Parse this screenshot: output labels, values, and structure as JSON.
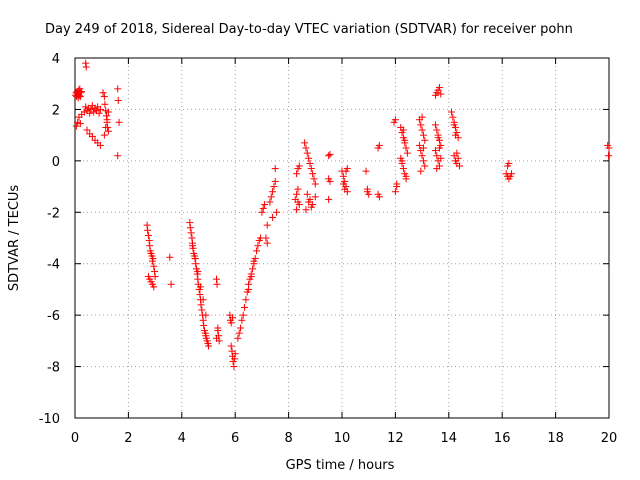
{
  "chart_data": {
    "type": "scatter",
    "title": "Day 249 of 2018, Sidereal Day-to-day VTEC variation (SDTVAR) for receiver pohn",
    "xlabel": "GPS time / hours",
    "ylabel": "SDTVAR / TECUs",
    "xlim": [
      0,
      20
    ],
    "ylim": [
      -10,
      4
    ],
    "xticks": [
      0,
      2,
      4,
      6,
      8,
      10,
      12,
      14,
      16,
      18,
      20
    ],
    "yticks": [
      -10,
      -8,
      -6,
      -4,
      -2,
      0,
      2,
      4
    ],
    "xtick_labels": [
      "0",
      "2",
      "4",
      "6",
      "8",
      "10",
      "12",
      "14",
      "16",
      "18",
      "20"
    ],
    "ytick_labels": [
      "-10",
      "-8",
      "-6",
      "-4",
      "-2",
      "0",
      "2",
      "4"
    ],
    "grid": true,
    "marker": "+",
    "color": "#ff0000",
    "series": [
      {
        "name": "SDTVAR",
        "x": [
          0.02,
          0.04,
          0.06,
          0.08,
          0.1,
          0.12,
          0.14,
          0.16,
          0.18,
          0.2,
          0.22,
          0.24,
          0.05,
          0.1,
          0.15,
          0.2,
          0.25,
          0.4,
          0.42,
          0.35,
          0.4,
          0.45,
          0.5,
          0.55,
          0.6,
          0.65,
          0.7,
          0.75,
          0.8,
          0.85,
          0.9,
          0.95,
          0.45,
          0.55,
          0.65,
          0.75,
          0.85,
          0.95,
          1.05,
          1.1,
          1.12,
          1.15,
          1.18,
          1.2,
          1.22,
          1.25,
          1.1,
          1.15,
          1.2,
          1.25,
          1.6,
          1.62,
          1.65,
          1.6,
          2.7,
          2.72,
          2.75,
          2.78,
          2.8,
          2.82,
          2.85,
          2.88,
          2.9,
          2.92,
          2.95,
          2.98,
          3.0,
          2.75,
          2.8,
          2.85,
          2.9,
          2.95,
          3.55,
          3.6,
          4.3,
          4.32,
          4.35,
          4.38,
          4.4,
          4.42,
          4.45,
          4.48,
          4.5,
          4.52,
          4.55,
          4.58,
          4.6,
          4.62,
          4.65,
          4.68,
          4.7,
          4.72,
          4.75,
          4.78,
          4.8,
          4.82,
          4.85,
          4.88,
          4.9,
          4.92,
          4.95,
          4.98,
          5.0,
          4.4,
          4.5,
          4.6,
          4.7,
          4.8,
          4.9,
          5.3,
          5.32,
          5.35,
          5.38,
          5.4,
          5.35,
          5.3,
          5.8,
          5.82,
          5.85,
          5.88,
          5.9,
          5.92,
          5.95,
          5.98,
          6.0,
          5.9,
          5.85,
          6.1,
          6.15,
          6.2,
          6.25,
          6.3,
          6.35,
          6.4,
          6.45,
          6.5,
          6.55,
          6.6,
          6.65,
          6.7,
          6.75,
          6.8,
          6.85,
          6.9,
          6.95,
          6.5,
          6.6,
          6.7,
          7.0,
          7.05,
          7.1,
          7.15,
          7.2,
          7.2,
          7.3,
          7.35,
          7.4,
          7.45,
          7.5,
          7.55,
          7.4,
          7.5,
          8.25,
          8.3,
          8.35,
          8.4,
          8.3,
          8.35,
          8.4,
          8.3,
          8.35,
          8.6,
          8.65,
          8.7,
          8.75,
          8.8,
          8.85,
          8.9,
          8.95,
          9.0,
          8.7,
          8.8,
          8.9,
          9.0,
          8.65,
          8.75,
          8.85,
          9.5,
          9.55,
          9.5,
          9.55,
          9.5,
          10.0,
          10.05,
          10.1,
          10.15,
          10.2,
          10.05,
          10.1,
          10.15,
          10.2,
          10.9,
          10.95,
          11.0,
          10.95,
          11.35,
          11.4,
          11.35,
          11.4,
          11.95,
          12.0,
          12.05,
          12.0,
          12.05,
          12.2,
          12.25,
          12.3,
          12.35,
          12.4,
          12.45,
          12.2,
          12.25,
          12.3,
          12.35,
          12.4,
          12.3,
          12.35,
          12.25,
          12.4,
          12.9,
          12.95,
          13.0,
          13.05,
          13.1,
          12.9,
          12.95,
          13.0,
          13.05,
          13.1,
          12.95,
          13.0,
          13.05,
          13.5,
          13.55,
          13.6,
          13.65,
          13.7,
          13.5,
          13.55,
          13.6,
          13.65,
          13.7,
          13.5,
          13.55,
          13.6,
          13.65,
          13.55,
          13.6,
          13.65,
          13.7,
          14.1,
          14.15,
          14.2,
          14.25,
          14.3,
          14.35,
          14.2,
          14.25,
          14.3,
          14.35,
          14.4,
          14.2,
          14.25,
          14.3,
          16.15,
          16.2,
          16.25,
          16.3,
          16.35,
          16.2,
          16.25,
          19.95,
          20.0,
          19.98
        ],
        "y": [
          2.55,
          2.65,
          2.5,
          2.7,
          2.6,
          2.45,
          2.75,
          2.55,
          2.8,
          2.5,
          2.65,
          2.7,
          1.35,
          1.5,
          1.7,
          1.45,
          1.8,
          3.8,
          3.65,
          1.9,
          2.1,
          1.95,
          2.05,
          1.85,
          2.0,
          2.15,
          1.9,
          2.05,
          1.95,
          2.1,
          1.85,
          2.0,
          1.2,
          1.05,
          0.95,
          0.8,
          0.7,
          0.6,
          2.65,
          2.5,
          2.2,
          1.95,
          1.75,
          1.5,
          1.3,
          1.15,
          1.0,
          1.3,
          1.6,
          1.9,
          2.8,
          2.35,
          1.5,
          0.2,
          -2.5,
          -2.7,
          -2.9,
          -3.1,
          -3.3,
          -3.5,
          -3.6,
          -3.7,
          -3.9,
          -3.8,
          -4.1,
          -4.3,
          -4.5,
          -4.5,
          -4.6,
          -4.7,
          -4.8,
          -4.9,
          -3.75,
          -4.8,
          -2.4,
          -2.6,
          -2.8,
          -3.0,
          -3.2,
          -3.4,
          -3.6,
          -3.7,
          -3.8,
          -4.0,
          -4.2,
          -4.4,
          -4.6,
          -4.8,
          -5.0,
          -5.2,
          -5.4,
          -5.6,
          -5.8,
          -6.0,
          -6.2,
          -6.4,
          -6.6,
          -6.7,
          -6.8,
          -6.9,
          -7.0,
          -7.1,
          -7.2,
          -3.3,
          -3.8,
          -4.3,
          -4.9,
          -5.4,
          -6.0,
          -4.6,
          -4.8,
          -6.5,
          -6.8,
          -7.0,
          -6.6,
          -6.9,
          -6.0,
          -6.2,
          -7.2,
          -7.4,
          -7.6,
          -7.8,
          -8.0,
          -7.7,
          -7.5,
          -6.1,
          -6.3,
          -6.9,
          -6.7,
          -6.5,
          -6.2,
          -6.0,
          -5.7,
          -5.4,
          -5.1,
          -4.8,
          -4.6,
          -4.4,
          -4.2,
          -4.0,
          -3.8,
          -3.5,
          -3.3,
          -3.1,
          -3.0,
          -5.0,
          -4.5,
          -3.9,
          -2.0,
          -1.85,
          -1.7,
          -3.0,
          -3.2,
          -2.5,
          -1.6,
          -1.4,
          -1.2,
          -1.0,
          -0.8,
          -2.0,
          -2.2,
          -0.3,
          -1.5,
          -1.3,
          -1.1,
          -1.7,
          -0.5,
          -0.3,
          -0.2,
          -1.9,
          -1.6,
          0.7,
          0.5,
          0.3,
          0.1,
          -0.1,
          -0.3,
          -0.5,
          -0.7,
          -0.9,
          -1.3,
          -1.5,
          -1.7,
          -1.4,
          -1.9,
          -1.6,
          -1.8,
          0.2,
          0.25,
          -0.7,
          -0.8,
          -1.5,
          -0.4,
          -0.6,
          -0.8,
          -1.0,
          -1.2,
          -0.9,
          -1.1,
          -0.4,
          -0.3,
          -0.4,
          -1.1,
          -1.3,
          -1.2,
          0.5,
          0.6,
          -1.3,
          -1.4,
          1.5,
          1.6,
          -1.0,
          -1.2,
          -0.9,
          1.3,
          1.1,
          0.9,
          0.7,
          0.5,
          0.3,
          0.1,
          -0.1,
          -0.3,
          -0.5,
          -0.6,
          1.2,
          0.8,
          0.0,
          -0.7,
          1.6,
          1.4,
          1.2,
          1.0,
          0.8,
          0.6,
          0.4,
          0.2,
          0.0,
          -0.2,
          -0.4,
          1.7,
          0.5,
          2.55,
          2.65,
          2.75,
          2.85,
          2.6,
          1.4,
          1.2,
          1.0,
          0.8,
          0.6,
          0.4,
          0.2,
          0.0,
          -0.2,
          -0.3,
          0.9,
          0.5,
          0.1,
          1.9,
          1.7,
          1.5,
          1.3,
          1.1,
          0.9,
          0.2,
          0.0,
          -0.1,
          0.1,
          -0.2,
          1.4,
          1.0,
          0.3,
          -0.5,
          -0.6,
          -0.7,
          -0.6,
          -0.5,
          -0.2,
          -0.1,
          0.6,
          0.5,
          0.2
        ]
      }
    ]
  }
}
